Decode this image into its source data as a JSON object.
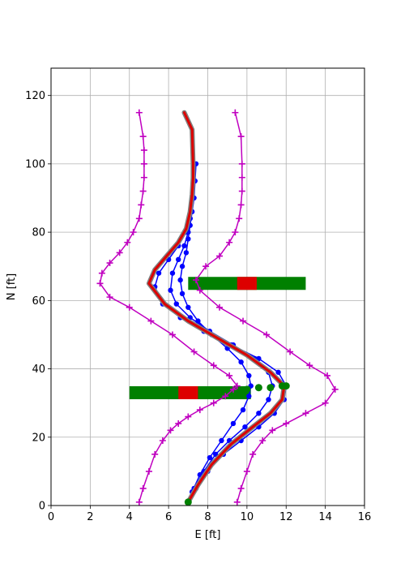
{
  "chart_data": {
    "type": "line",
    "title": "",
    "xlabel": "E [ft]",
    "ylabel": "N [ft]",
    "xlim": [
      0,
      16
    ],
    "ylim": [
      0,
      128
    ],
    "xticks": [
      0,
      2,
      4,
      6,
      8,
      10,
      12,
      14,
      16
    ],
    "yticks": [
      0,
      20,
      40,
      60,
      80,
      100,
      120
    ],
    "grid": true,
    "colors": {
      "boundary": "#c000c0",
      "planned": "#0000ff",
      "actual_outline": "#808080",
      "actual": "#dd0000",
      "obstacle_green": "#008000",
      "obstacle_red": "#dd0000"
    },
    "series": [
      {
        "role": "boundary-left",
        "marker": "plus",
        "x": [
          4.5,
          4.7,
          5.0,
          5.3,
          5.7,
          6.1,
          6.5,
          7.0,
          7.6,
          8.3,
          8.9,
          9.3,
          9.5,
          9.1,
          8.3,
          7.3,
          6.2,
          5.1,
          4.0,
          3.0,
          2.5,
          2.6,
          3.0,
          3.5,
          3.9,
          4.2,
          4.5,
          4.6,
          4.7,
          4.75,
          4.75,
          4.75,
          4.7,
          4.5
        ],
        "y": [
          1,
          5,
          10,
          15,
          19,
          22,
          24,
          26,
          28,
          30,
          32,
          34,
          35,
          38,
          41,
          45,
          50,
          54,
          58,
          61,
          65,
          68,
          71,
          74,
          77,
          80,
          84,
          88,
          92,
          96,
          100,
          104,
          108,
          115
        ]
      },
      {
        "role": "boundary-right",
        "marker": "plus",
        "x": [
          9.5,
          9.7,
          10.0,
          10.3,
          10.8,
          11.3,
          12.0,
          13.0,
          14.0,
          14.5,
          14.1,
          13.2,
          12.2,
          11.0,
          9.8,
          8.6,
          7.6,
          7.4,
          7.9,
          8.6,
          9.1,
          9.4,
          9.6,
          9.7,
          9.75,
          9.75,
          9.75,
          9.7,
          9.4
        ],
        "y": [
          1,
          5,
          10,
          15,
          19,
          22,
          24,
          27,
          30,
          34,
          38,
          41,
          45,
          50,
          54,
          58,
          63,
          66,
          70,
          73,
          77,
          80,
          84,
          88,
          92,
          96,
          100,
          108,
          115
        ]
      },
      {
        "role": "planned-path",
        "marker": "circle",
        "x": [
          7.0,
          7.2,
          7.6,
          8.1,
          8.7,
          9.3,
          9.8,
          10.1,
          10.2,
          10.1,
          9.7,
          9.0,
          8.2,
          7.5,
          7.0,
          6.7,
          6.6,
          6.7,
          6.9,
          7.0,
          7.1,
          7.2,
          7.3,
          7.35,
          7.4
        ],
        "y": [
          1,
          4,
          9,
          14,
          19,
          24,
          28,
          32,
          35,
          38,
          42,
          46,
          50,
          54,
          58,
          62,
          66,
          70,
          74,
          78,
          82,
          86,
          90,
          95,
          100
        ]
      },
      {
        "role": "planned-path",
        "marker": "circle",
        "x": [
          7.0,
          7.3,
          7.8,
          8.4,
          9.1,
          9.9,
          10.6,
          11.1,
          11.3,
          11.1,
          10.4,
          9.3,
          8.1,
          7.1,
          6.4,
          6.1,
          6.2,
          6.5,
          6.8,
          7.0,
          7.1
        ],
        "y": [
          1,
          5,
          10,
          15,
          19,
          23,
          27,
          31,
          35,
          39,
          43,
          47,
          51,
          55,
          59,
          63,
          68,
          72,
          76,
          80,
          84
        ]
      },
      {
        "role": "planned-path",
        "marker": "circle",
        "x": [
          7.0,
          7.4,
          8.0,
          8.8,
          9.7,
          10.6,
          11.4,
          11.9,
          12.0,
          11.6,
          10.6,
          9.2,
          7.8,
          6.6,
          5.7,
          5.3,
          5.5,
          6.0,
          6.5,
          6.9,
          7.1
        ],
        "y": [
          1,
          5,
          10,
          15,
          19,
          23,
          27,
          31,
          35,
          39,
          43,
          47,
          51,
          55,
          59,
          64,
          68,
          72,
          76,
          80,
          84
        ]
      },
      {
        "role": "actual-path",
        "marker": "none",
        "x": [
          7.0,
          7.5,
          8.2,
          9.2,
          10.3,
          11.2,
          11.8,
          11.9,
          11.2,
          10.0,
          8.5,
          7.0,
          5.8,
          5.0,
          5.3,
          5.9,
          6.5,
          6.9,
          7.1,
          7.2,
          7.25,
          7.25,
          7.2,
          6.8
        ],
        "y": [
          1,
          6,
          12,
          18,
          23,
          27,
          31,
          35,
          39,
          44,
          49,
          54,
          59,
          65,
          69,
          73,
          77,
          81,
          86,
          91,
          96,
          100,
          110,
          115
        ]
      }
    ],
    "obstacles": [
      {
        "color": "green",
        "x": [
          7.0,
          13.0
        ],
        "y": 65
      },
      {
        "color": "red",
        "x": [
          9.5,
          10.5
        ],
        "y": 65
      },
      {
        "color": "green",
        "x": [
          4.0,
          10.2
        ],
        "y": 33
      },
      {
        "color": "red",
        "x": [
          6.5,
          7.5
        ],
        "y": 33
      }
    ],
    "waypoints": [
      {
        "x": 7.0,
        "y": 1
      },
      {
        "x": 10.0,
        "y": 34
      },
      {
        "x": 10.6,
        "y": 34.5
      },
      {
        "x": 11.2,
        "y": 34.5
      },
      {
        "x": 11.8,
        "y": 35
      },
      {
        "x": 12.0,
        "y": 35
      }
    ]
  }
}
